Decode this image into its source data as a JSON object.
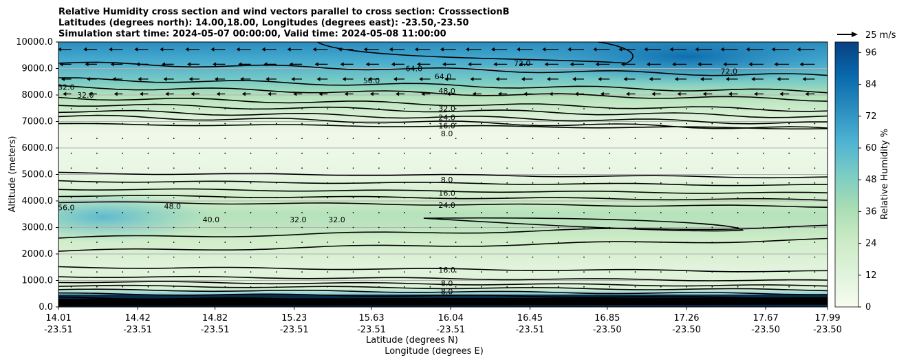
{
  "chart_data": {
    "type": "contour",
    "title_lines": [
      "Relative Humidity cross section and wind vectors parallel to cross section: CrosssectionB",
      "Latitudes (degrees north): 14.00,18.00, Longitudes (degrees east): -23.50,-23.50",
      "Simulation start time: 2024-05-07 00:00:00, Valid time: 2024-05-08 11:00:00"
    ],
    "ylabel": "Altitude (meters)",
    "xlabel": "Latitude (degrees N)",
    "xlabel2": "Longitude (degrees E)",
    "ylim": [
      0,
      10000
    ],
    "y_ticks": [
      "0.0",
      "1000.0",
      "2000.0",
      "3000.0",
      "4000.0",
      "5000.0",
      "6000.0",
      "7000.0",
      "8000.0",
      "9000.0",
      "10000.0"
    ],
    "x_ticks": [
      {
        "lat": "14.01",
        "lon": "-23.51"
      },
      {
        "lat": "14.42",
        "lon": "-23.51"
      },
      {
        "lat": "14.82",
        "lon": "-23.51"
      },
      {
        "lat": "15.23",
        "lon": "-23.51"
      },
      {
        "lat": "15.63",
        "lon": "-23.51"
      },
      {
        "lat": "16.04",
        "lon": "-23.51"
      },
      {
        "lat": "16.45",
        "lon": "-23.51"
      },
      {
        "lat": "16.85",
        "lon": "-23.50"
      },
      {
        "lat": "17.26",
        "lon": "-23.50"
      },
      {
        "lat": "17.67",
        "lon": "-23.50"
      },
      {
        "lat": "17.99",
        "lon": "-23.50"
      }
    ],
    "grid": "horizontal",
    "colorbar": {
      "label": "Relative Humidity %",
      "ticks": [
        "0",
        "12",
        "24",
        "36",
        "48",
        "60",
        "72",
        "84",
        "96"
      ],
      "range": [
        0,
        100
      ],
      "colormap": "GnBu",
      "colors": [
        "#f7fcf0",
        "#e0f3db",
        "#ccebc5",
        "#a8ddb5",
        "#7bccc4",
        "#4eb3d3",
        "#2b8cbe",
        "#0868ac",
        "#084081"
      ]
    },
    "quiver_key": "25 m/s",
    "humidity_profile": [
      {
        "alt": 0,
        "rh": 95
      },
      {
        "alt": 150,
        "rh": 90
      },
      {
        "alt": 350,
        "rh": 60
      },
      {
        "alt": 700,
        "rh": 14
      },
      {
        "alt": 1500,
        "rh": 12
      },
      {
        "alt": 2500,
        "rh": 22
      },
      {
        "alt": 3000,
        "rh": 30
      },
      {
        "alt": 3500,
        "rh": 33
      },
      {
        "alt": 4000,
        "rh": 24
      },
      {
        "alt": 5000,
        "rh": 8
      },
      {
        "alt": 6500,
        "rh": 4
      },
      {
        "alt": 7200,
        "rh": 16
      },
      {
        "alt": 8000,
        "rh": 34
      },
      {
        "alt": 8500,
        "rh": 50
      },
      {
        "alt": 9300,
        "rh": 65
      },
      {
        "alt": 10000,
        "rh": 75
      }
    ],
    "contour_labels": [
      {
        "text": "56.0",
        "lat": 15.63,
        "alt": 8550
      },
      {
        "text": "48.0",
        "lat": 16.02,
        "alt": 8150
      },
      {
        "text": "32.0",
        "lat": 16.02,
        "alt": 7500
      },
      {
        "text": "24.0",
        "lat": 16.02,
        "alt": 7150
      },
      {
        "text": "16.0",
        "lat": 16.02,
        "alt": 6850
      },
      {
        "text": "8.0",
        "lat": 16.02,
        "alt": 6550
      },
      {
        "text": "64.0",
        "lat": 15.85,
        "alt": 9000
      },
      {
        "text": "64.0",
        "lat": 16.0,
        "alt": 8700
      },
      {
        "text": "72.0",
        "lat": 16.41,
        "alt": 9200
      },
      {
        "text": "72.0",
        "lat": 17.48,
        "alt": 8900
      },
      {
        "text": "32.0",
        "lat": 14.15,
        "alt": 8000
      },
      {
        "text": "32.0",
        "lat": 14.05,
        "alt": 8300
      },
      {
        "text": "8.0",
        "lat": 16.02,
        "alt": 4800
      },
      {
        "text": "16.0",
        "lat": 16.02,
        "alt": 4300
      },
      {
        "text": "24.0",
        "lat": 16.02,
        "alt": 3850
      },
      {
        "text": "56.0",
        "lat": 14.05,
        "alt": 3750
      },
      {
        "text": "48.0",
        "lat": 14.6,
        "alt": 3800
      },
      {
        "text": "40.0",
        "lat": 14.8,
        "alt": 3300
      },
      {
        "text": "32.0",
        "lat": 15.25,
        "alt": 3300
      },
      {
        "text": "32.0",
        "lat": 15.45,
        "alt": 3300
      },
      {
        "text": "16.0",
        "lat": 16.02,
        "alt": 1400
      },
      {
        "text": "8.0",
        "lat": 16.02,
        "alt": 900
      },
      {
        "text": "8.0",
        "lat": 16.02,
        "alt": 580
      }
    ]
  }
}
